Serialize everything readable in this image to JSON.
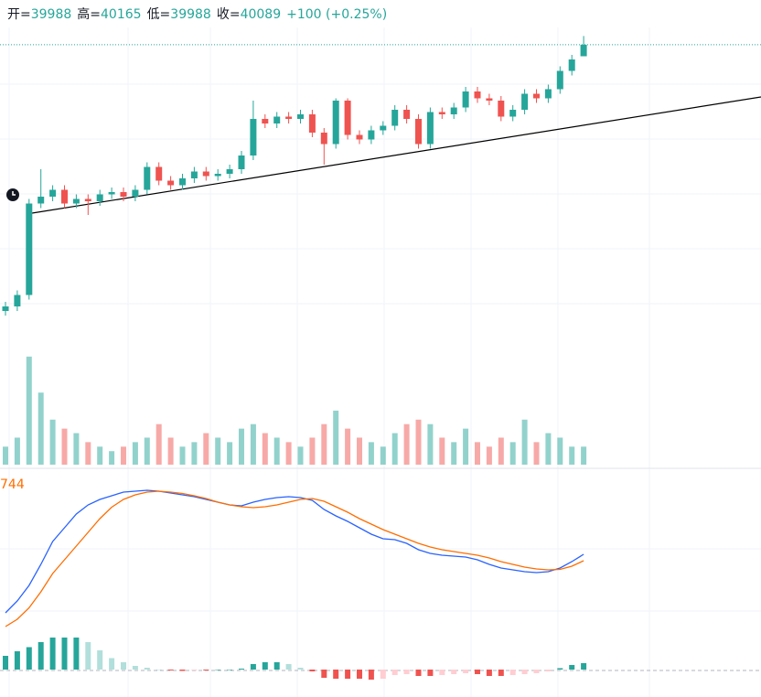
{
  "chart_data": {
    "type": "candlestick",
    "header": {
      "labels": [
        "开=",
        "高=",
        "低=",
        "收="
      ],
      "change": "+100 (+0.25%)"
    },
    "up_color": "#26a69a",
    "down_color": "#ef5350",
    "open": [
      37760,
      37800,
      37900,
      38700,
      38760,
      38820,
      38700,
      38740,
      38720,
      38780,
      38800,
      38760,
      38820,
      39020,
      38900,
      38860,
      38920,
      38980,
      38940,
      38960,
      39000,
      39120,
      39440,
      39400,
      39460,
      39440,
      39480,
      39320,
      39220,
      39600,
      39300,
      39260,
      39340,
      39380,
      39520,
      39440,
      39220,
      39500,
      39480,
      39540,
      39680,
      39620,
      39600,
      39460,
      39520,
      39660,
      39620,
      39700,
      39860,
      39988
    ],
    "high": [
      37840,
      37940,
      38740,
      39000,
      38860,
      38860,
      38780,
      38780,
      38820,
      38840,
      38840,
      38860,
      39060,
      39060,
      38940,
      38960,
      39020,
      39020,
      39000,
      39040,
      39160,
      39600,
      39480,
      39500,
      39500,
      39520,
      39520,
      39360,
      39620,
      39620,
      39340,
      39380,
      39420,
      39560,
      39560,
      39480,
      39540,
      39540,
      39580,
      39720,
      39720,
      39660,
      39640,
      39560,
      39700,
      39700,
      39740,
      39900,
      40000,
      40165
    ],
    "low": [
      37720,
      37760,
      37860,
      38660,
      38720,
      38660,
      38660,
      38600,
      38680,
      38740,
      38720,
      38720,
      38780,
      38860,
      38820,
      38820,
      38880,
      38900,
      38900,
      38920,
      38960,
      39080,
      39360,
      39360,
      39400,
      39400,
      39280,
      39040,
      39180,
      39260,
      39220,
      39220,
      39300,
      39340,
      39400,
      39180,
      39180,
      39440,
      39440,
      39500,
      39580,
      39560,
      39420,
      39420,
      39480,
      39580,
      39580,
      39660,
      39820,
      39988
    ],
    "close": [
      37800,
      37900,
      38700,
      38760,
      38820,
      38700,
      38740,
      38720,
      38780,
      38800,
      38760,
      38820,
      39020,
      38900,
      38860,
      38920,
      38980,
      38940,
      38960,
      39000,
      39120,
      39440,
      39400,
      39460,
      39440,
      39480,
      39320,
      39220,
      39600,
      39300,
      39260,
      39340,
      39380,
      39520,
      39440,
      39220,
      39500,
      39480,
      39540,
      39680,
      39620,
      39600,
      39460,
      39520,
      39660,
      39620,
      39700,
      39860,
      39960,
      40089
    ],
    "ylim": [
      37440,
      40240
    ],
    "volume": [
      20,
      30,
      120,
      80,
      50,
      40,
      35,
      25,
      20,
      15,
      20,
      25,
      30,
      45,
      30,
      20,
      25,
      35,
      30,
      25,
      40,
      45,
      35,
      30,
      25,
      20,
      30,
      45,
      60,
      40,
      30,
      25,
      20,
      35,
      45,
      50,
      45,
      30,
      25,
      40,
      25,
      20,
      30,
      25,
      50,
      25,
      35,
      30,
      20,
      20
    ],
    "volume_ylim": [
      0,
      130
    ],
    "macd": {
      "label": "744",
      "dif_color": "#2962ff",
      "dea_color": "#ff6d00",
      "dif": [
        124,
        150,
        184,
        230,
        280,
        310,
        340,
        360,
        372,
        380,
        388,
        390,
        392,
        390,
        386,
        382,
        378,
        372,
        366,
        360,
        358,
        366,
        372,
        376,
        378,
        376,
        370,
        350,
        336,
        324,
        310,
        296,
        286,
        284,
        276,
        262,
        254,
        250,
        248,
        246,
        240,
        230,
        222,
        218,
        214,
        212,
        214,
        222,
        236,
        252
      ],
      "dea": [
        94,
        110,
        135,
        170,
        210,
        240,
        270,
        300,
        330,
        355,
        372,
        382,
        388,
        390,
        388,
        385,
        380,
        374,
        366,
        360,
        356,
        354,
        356,
        360,
        366,
        372,
        374,
        368,
        356,
        344,
        330,
        318,
        306,
        296,
        286,
        276,
        268,
        262,
        258,
        254,
        250,
        244,
        236,
        230,
        224,
        220,
        218,
        219,
        226,
        238
      ],
      "hist": [
        30,
        40,
        49,
        60,
        70,
        70,
        70,
        60,
        42,
        25,
        16,
        8,
        4,
        0,
        -2,
        -3,
        -2,
        -2,
        0,
        0,
        2,
        12,
        16,
        16,
        12,
        4,
        -4,
        -18,
        -20,
        -20,
        -20,
        -22,
        -20,
        -12,
        -10,
        -14,
        -14,
        -12,
        -10,
        -8,
        -10,
        -14,
        -14,
        -12,
        -10,
        -8,
        -4,
        3,
        10,
        14
      ],
      "ylim": [
        -60,
        440
      ]
    }
  }
}
